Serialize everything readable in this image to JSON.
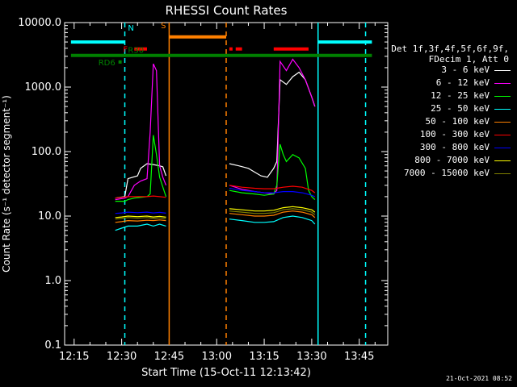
{
  "chart_data": {
    "type": "line",
    "title": "RHESSI Count Rates",
    "xlabel": "Start Time (15-Oct-11 12:13:42)",
    "ylabel": "Count Rate (s⁻¹ detector segment⁻¹)",
    "yscale": "log",
    "ylim": [
      0.1,
      10000
    ],
    "xlim_minutes": [
      12.2,
      13.9
    ],
    "x_ticks": [
      "12:15",
      "12:30",
      "12:45",
      "13:00",
      "13:15",
      "13:30",
      "13:45"
    ],
    "y_ticks": [
      "0.1",
      "1.0",
      "10.0",
      "100.0",
      "1000.0",
      "10000.0"
    ],
    "legend": {
      "header": [
        "Det 1f,3f,4f,5f,6f,9f,",
        "FDecim 1, Att 0"
      ],
      "placement": "right"
    },
    "series": [
      {
        "name": "3 - 6 keV",
        "color": "#ffffff",
        "segments": [
          {
            "t": [
              "12:28",
              "12:31",
              "12:32",
              "12:35",
              "12:36",
              "12:38",
              "12:40",
              "12:42",
              "12:43",
              "12:44"
            ],
            "v": [
              19,
              20,
              38,
              42,
              55,
              65,
              63,
              60,
              58,
              42
            ]
          },
          {
            "t": [
              "13:04",
              "13:07",
              "13:10",
              "13:12",
              "13:14",
              "13:16",
              "13:18",
              "13:19",
              "13:20",
              "13:22",
              "13:24",
              "13:26",
              "13:28",
              "13:30",
              "13:31"
            ],
            "v": [
              65,
              60,
              55,
              48,
              42,
              40,
              55,
              70,
              1300,
              1100,
              1450,
              1700,
              1300,
              700,
              500
            ]
          }
        ]
      },
      {
        "name": "6 - 12 keV",
        "color": "#ff00ff",
        "segments": [
          {
            "t": [
              "12:28",
              "12:31",
              "12:32",
              "12:34",
              "12:36",
              "12:38",
              "12:39",
              "12:40",
              "12:41",
              "12:42",
              "12:43",
              "12:44"
            ],
            "v": [
              18,
              19,
              20,
              30,
              35,
              38,
              200,
              2300,
              1800,
              60,
              40,
              30
            ]
          },
          {
            "t": [
              "13:04",
              "13:08",
              "13:12",
              "13:15",
              "13:18",
              "13:19",
              "13:20",
              "13:22",
              "13:24",
              "13:26",
              "13:28",
              "13:30",
              "13:31"
            ],
            "v": [
              30,
              26,
              24,
              23,
              22,
              25,
              2500,
              1800,
              2700,
              2000,
              1300,
              700,
              500
            ]
          }
        ]
      },
      {
        "name": "12 - 25 keV",
        "color": "#00ff00",
        "segments": [
          {
            "t": [
              "12:28",
              "12:31",
              "12:32",
              "12:34",
              "12:38",
              "12:39",
              "12:40",
              "12:41",
              "12:42",
              "12:44"
            ],
            "v": [
              17,
              17,
              18,
              19,
              20,
              22,
              180,
              90,
              40,
              20
            ]
          },
          {
            "t": [
              "13:04",
              "13:08",
              "13:12",
              "13:15",
              "13:18",
              "13:19",
              "13:20",
              "13:21",
              "13:22",
              "13:24",
              "13:26",
              "13:28",
              "13:29",
              "13:30",
              "13:31"
            ],
            "v": [
              25,
              23,
              22,
              21,
              22,
              30,
              130,
              90,
              70,
              90,
              80,
              55,
              25,
              20,
              18
            ]
          }
        ]
      },
      {
        "name": "25 - 50 keV",
        "color": "#00ffff",
        "segments": [
          {
            "t": [
              "12:28",
              "12:30",
              "12:32",
              "12:35",
              "12:38",
              "12:40",
              "12:42",
              "12:44"
            ],
            "v": [
              6,
              6.5,
              7,
              7,
              7.5,
              7,
              7.5,
              7
            ]
          },
          {
            "t": [
              "13:04",
              "13:08",
              "13:12",
              "13:15",
              "13:18",
              "13:21",
              "13:24",
              "13:27",
              "13:30",
              "13:31"
            ],
            "v": [
              9,
              8.5,
              8,
              8,
              8.2,
              9.5,
              10,
              9.5,
              8.5,
              7.5
            ]
          }
        ]
      },
      {
        "name": "50 - 100 keV",
        "color": "#ff8000",
        "segments": [
          {
            "t": [
              "12:28",
              "12:30",
              "12:32",
              "12:35",
              "12:38",
              "12:40",
              "12:42",
              "12:44"
            ],
            "v": [
              8,
              8.2,
              8.5,
              8.4,
              8.6,
              8.5,
              8.7,
              8.5
            ]
          },
          {
            "t": [
              "13:04",
              "13:08",
              "13:12",
              "13:15",
              "13:18",
              "13:21",
              "13:24",
              "13:27",
              "13:30",
              "13:31"
            ],
            "v": [
              11,
              10.5,
              10,
              10,
              10.3,
              11.5,
              12,
              11.5,
              10.5,
              9.5
            ]
          }
        ]
      },
      {
        "name": "100 - 300 keV",
        "color": "#ff0000",
        "segments": [
          {
            "t": [
              "12:28",
              "12:30",
              "12:32",
              "12:35",
              "12:38",
              "12:40",
              "12:42",
              "12:44"
            ],
            "v": [
              19,
              19.5,
              20,
              20,
              20,
              20.5,
              20,
              19.5
            ]
          },
          {
            "t": [
              "13:04",
              "13:08",
              "13:12",
              "13:15",
              "13:18",
              "13:21",
              "13:24",
              "13:27",
              "13:30",
              "13:31"
            ],
            "v": [
              30,
              28,
              27,
              26.5,
              26.5,
              28,
              29,
              28,
              25,
              23
            ]
          }
        ]
      },
      {
        "name": "300 - 800 keV",
        "color": "#0000ff",
        "segments": [
          {
            "t": [
              "12:28",
              "12:30",
              "12:32",
              "12:35",
              "12:38",
              "12:40",
              "12:42",
              "12:44"
            ],
            "v": [
              11,
              11.2,
              11.5,
              11.3,
              11.5,
              11.2,
              11.4,
              11.1
            ]
          },
          {
            "t": [
              "13:04",
              "13:08",
              "13:12",
              "13:15",
              "13:18",
              "13:21",
              "13:24",
              "13:27",
              "13:30",
              "13:31"
            ],
            "v": [
              27,
              25,
              24,
              23,
              23,
              24,
              24,
              23,
              21,
              20
            ]
          }
        ]
      },
      {
        "name": "800 - 7000 keV",
        "color": "#ffff00",
        "segments": [
          {
            "t": [
              "12:28",
              "12:30",
              "12:32",
              "12:35",
              "12:38",
              "12:40",
              "12:42",
              "12:44"
            ],
            "v": [
              9.5,
              9.7,
              10,
              9.8,
              10,
              9.7,
              9.9,
              9.6
            ]
          },
          {
            "t": [
              "13:04",
              "13:08",
              "13:12",
              "13:15",
              "13:18",
              "13:21",
              "13:24",
              "13:27",
              "13:30",
              "13:31"
            ],
            "v": [
              13,
              12.5,
              12,
              12,
              12.3,
              13.5,
              14,
              13.5,
              12.5,
              11.5
            ]
          }
        ]
      },
      {
        "name": "7000 - 15000 keV",
        "color": "#808000",
        "segments": [
          {
            "t": [
              "12:28",
              "12:30",
              "12:32",
              "12:35",
              "12:38",
              "12:40",
              "12:42",
              "12:44"
            ],
            "v": [
              9,
              9.2,
              9.5,
              9.3,
              9.5,
              9.2,
              9.4,
              9.1
            ]
          },
          {
            "t": [
              "13:04",
              "13:08",
              "13:12",
              "13:15",
              "13:18",
              "13:21",
              "13:24",
              "13:27",
              "13:30",
              "13:31"
            ],
            "v": [
              12,
              11.5,
              11,
              11,
              11.3,
              12.5,
              13,
              12.5,
              11.5,
              10.5
            ]
          }
        ]
      }
    ],
    "annotations": {
      "vlines": [
        {
          "t": "12:31",
          "color": "#00ffff",
          "style": "dashed"
        },
        {
          "t": "12:45",
          "color": "#ff8000",
          "style": "solid"
        },
        {
          "t": "13:03",
          "color": "#ff8000",
          "style": "dashed"
        },
        {
          "t": "13:32",
          "color": "#00ffff",
          "style": "solid"
        },
        {
          "t": "13:47",
          "color": "#00ffff",
          "style": "dashed"
        }
      ],
      "bars": [
        {
          "label": "N",
          "color": "#00ffff",
          "spans": [
            [
              "12:14",
              "12:31"
            ],
            [
              "13:32",
              "13:49"
            ]
          ],
          "level": 5000
        },
        {
          "label": "F",
          "color": "#ff0000",
          "spans": [
            [
              "12:34",
              "12:38"
            ],
            [
              "13:04",
              "13:05"
            ],
            [
              "13:06",
              "13:08"
            ],
            [
              "13:18",
              "13:29"
            ]
          ],
          "level": 3900
        },
        {
          "label": "S",
          "color": "#ff8000",
          "spans": [
            [
              "12:45",
              "13:03"
            ]
          ],
          "level": 6000
        },
        {
          "label": "R30",
          "color": "#008000",
          "spans": [
            [
              "12:14",
              "13:49"
            ]
          ],
          "level": 3100
        },
        {
          "label": "RD6",
          "color": "#008000",
          "spans": [
            [
              "12:29",
              "12:30"
            ]
          ],
          "level": 2450
        }
      ]
    }
  },
  "footer_timestamp": "21-Oct-2021 08:52"
}
